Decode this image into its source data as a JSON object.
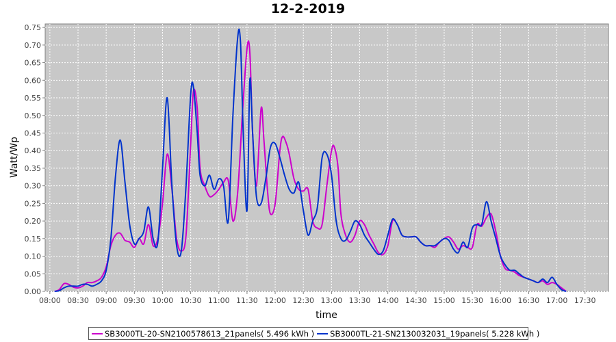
{
  "chart_data": {
    "type": "line",
    "title": "12-2-2019",
    "xlabel": "time",
    "ylabel": "Watt/Wp",
    "x_ticks": [
      "08:00",
      "08:30",
      "09:00",
      "09:30",
      "10:00",
      "10:30",
      "11:00",
      "11:30",
      "12:00",
      "12:30",
      "13:00",
      "13:30",
      "14:00",
      "14:30",
      "15:00",
      "15:30",
      "16:00",
      "16:30",
      "17:00",
      "17:30"
    ],
    "y_ticks": [
      "0.00",
      "0.05",
      "0.10",
      "0.15",
      "0.20",
      "0.25",
      "0.30",
      "0.35",
      "0.40",
      "0.45",
      "0.50",
      "0.55",
      "0.60",
      "0.65",
      "0.70",
      "0.75"
    ],
    "xlim": [
      "07:55",
      "17:55"
    ],
    "ylim": [
      0,
      0.76
    ],
    "grid": true,
    "legend_position": "bottom",
    "series": [
      {
        "name": "SB3000TL-20-SN2100578613_21panels( 5.496 kWh )",
        "color": "#cc00cc",
        "points": [
          [
            "08:05",
            0.0
          ],
          [
            "08:10",
            0.005
          ],
          [
            "08:15",
            0.022
          ],
          [
            "08:20",
            0.02
          ],
          [
            "08:25",
            0.012
          ],
          [
            "08:30",
            0.01
          ],
          [
            "08:35",
            0.015
          ],
          [
            "08:40",
            0.025
          ],
          [
            "08:45",
            0.025
          ],
          [
            "08:50",
            0.03
          ],
          [
            "08:55",
            0.04
          ],
          [
            "09:00",
            0.07
          ],
          [
            "09:05",
            0.13
          ],
          [
            "09:10",
            0.16
          ],
          [
            "09:15",
            0.165
          ],
          [
            "09:20",
            0.145
          ],
          [
            "09:25",
            0.14
          ],
          [
            "09:30",
            0.125
          ],
          [
            "09:35",
            0.15
          ],
          [
            "09:40",
            0.135
          ],
          [
            "09:45",
            0.19
          ],
          [
            "09:50",
            0.13
          ],
          [
            "09:55",
            0.15
          ],
          [
            "10:00",
            0.25
          ],
          [
            "10:05",
            0.39
          ],
          [
            "10:10",
            0.29
          ],
          [
            "10:15",
            0.15
          ],
          [
            "10:20",
            0.115
          ],
          [
            "10:25",
            0.16
          ],
          [
            "10:30",
            0.42
          ],
          [
            "10:33",
            0.57
          ],
          [
            "10:37",
            0.52
          ],
          [
            "10:40",
            0.35
          ],
          [
            "10:45",
            0.3
          ],
          [
            "10:50",
            0.27
          ],
          [
            "10:55",
            0.275
          ],
          [
            "11:00",
            0.29
          ],
          [
            "11:05",
            0.31
          ],
          [
            "11:10",
            0.315
          ],
          [
            "11:15",
            0.2
          ],
          [
            "11:20",
            0.28
          ],
          [
            "11:25",
            0.5
          ],
          [
            "11:30",
            0.69
          ],
          [
            "11:33",
            0.68
          ],
          [
            "11:36",
            0.45
          ],
          [
            "11:40",
            0.3
          ],
          [
            "11:45",
            0.52
          ],
          [
            "11:48",
            0.43
          ],
          [
            "11:52",
            0.28
          ],
          [
            "11:55",
            0.22
          ],
          [
            "12:00",
            0.25
          ],
          [
            "12:05",
            0.4
          ],
          [
            "12:08",
            0.44
          ],
          [
            "12:12",
            0.42
          ],
          [
            "12:15",
            0.39
          ],
          [
            "12:20",
            0.32
          ],
          [
            "12:25",
            0.29
          ],
          [
            "12:30",
            0.285
          ],
          [
            "12:35",
            0.29
          ],
          [
            "12:40",
            0.2
          ],
          [
            "12:45",
            0.18
          ],
          [
            "12:50",
            0.19
          ],
          [
            "12:55",
            0.3
          ],
          [
            "13:00",
            0.4
          ],
          [
            "13:03",
            0.41
          ],
          [
            "13:07",
            0.35
          ],
          [
            "13:10",
            0.22
          ],
          [
            "13:15",
            0.16
          ],
          [
            "13:20",
            0.14
          ],
          [
            "13:25",
            0.16
          ],
          [
            "13:30",
            0.2
          ],
          [
            "13:35",
            0.19
          ],
          [
            "13:40",
            0.16
          ],
          [
            "13:45",
            0.135
          ],
          [
            "13:50",
            0.11
          ],
          [
            "13:55",
            0.105
          ],
          [
            "14:00",
            0.13
          ],
          [
            "14:05",
            0.2
          ],
          [
            "14:10",
            0.19
          ],
          [
            "14:15",
            0.16
          ],
          [
            "14:20",
            0.155
          ],
          [
            "14:25",
            0.155
          ],
          [
            "14:30",
            0.155
          ],
          [
            "14:35",
            0.14
          ],
          [
            "14:40",
            0.13
          ],
          [
            "14:45",
            0.13
          ],
          [
            "14:50",
            0.125
          ],
          [
            "14:55",
            0.14
          ],
          [
            "15:00",
            0.15
          ],
          [
            "15:05",
            0.155
          ],
          [
            "15:10",
            0.14
          ],
          [
            "15:15",
            0.12
          ],
          [
            "15:20",
            0.13
          ],
          [
            "15:25",
            0.125
          ],
          [
            "15:30",
            0.125
          ],
          [
            "15:35",
            0.19
          ],
          [
            "15:40",
            0.185
          ],
          [
            "15:45",
            0.21
          ],
          [
            "15:50",
            0.22
          ],
          [
            "15:55",
            0.17
          ],
          [
            "16:00",
            0.1
          ],
          [
            "16:05",
            0.065
          ],
          [
            "16:10",
            0.06
          ],
          [
            "16:15",
            0.055
          ],
          [
            "16:20",
            0.045
          ],
          [
            "16:25",
            0.04
          ],
          [
            "16:30",
            0.035
          ],
          [
            "16:35",
            0.03
          ],
          [
            "16:40",
            0.025
          ],
          [
            "16:45",
            0.03
          ],
          [
            "16:50",
            0.02
          ],
          [
            "16:55",
            0.025
          ],
          [
            "17:00",
            0.02
          ],
          [
            "17:05",
            0.01
          ],
          [
            "17:10",
            0.0
          ]
        ]
      },
      {
        "name": "SB3000TL-21-SN2130032031_19panels( 5.228 kWh )",
        "color": "#0033cc",
        "points": [
          [
            "08:05",
            0.0
          ],
          [
            "08:10",
            0.002
          ],
          [
            "08:15",
            0.01
          ],
          [
            "08:20",
            0.015
          ],
          [
            "08:25",
            0.015
          ],
          [
            "08:30",
            0.015
          ],
          [
            "08:35",
            0.02
          ],
          [
            "08:40",
            0.02
          ],
          [
            "08:45",
            0.015
          ],
          [
            "08:50",
            0.02
          ],
          [
            "08:55",
            0.03
          ],
          [
            "09:00",
            0.06
          ],
          [
            "09:05",
            0.15
          ],
          [
            "09:10",
            0.33
          ],
          [
            "09:15",
            0.43
          ],
          [
            "09:20",
            0.31
          ],
          [
            "09:25",
            0.19
          ],
          [
            "09:30",
            0.135
          ],
          [
            "09:35",
            0.15
          ],
          [
            "09:40",
            0.17
          ],
          [
            "09:45",
            0.24
          ],
          [
            "09:50",
            0.15
          ],
          [
            "09:55",
            0.14
          ],
          [
            "10:00",
            0.35
          ],
          [
            "10:05",
            0.55
          ],
          [
            "10:10",
            0.3
          ],
          [
            "10:15",
            0.13
          ],
          [
            "10:20",
            0.115
          ],
          [
            "10:25",
            0.3
          ],
          [
            "10:30",
            0.56
          ],
          [
            "10:33",
            0.58
          ],
          [
            "10:37",
            0.45
          ],
          [
            "10:40",
            0.33
          ],
          [
            "10:45",
            0.3
          ],
          [
            "10:50",
            0.33
          ],
          [
            "10:55",
            0.29
          ],
          [
            "11:00",
            0.32
          ],
          [
            "11:05",
            0.3
          ],
          [
            "11:10",
            0.2
          ],
          [
            "11:15",
            0.5
          ],
          [
            "11:20",
            0.72
          ],
          [
            "11:23",
            0.71
          ],
          [
            "11:26",
            0.45
          ],
          [
            "11:30",
            0.23
          ],
          [
            "11:33",
            0.6
          ],
          [
            "11:36",
            0.45
          ],
          [
            "11:40",
            0.27
          ],
          [
            "11:45",
            0.25
          ],
          [
            "11:50",
            0.32
          ],
          [
            "11:55",
            0.41
          ],
          [
            "12:00",
            0.42
          ],
          [
            "12:05",
            0.38
          ],
          [
            "12:10",
            0.33
          ],
          [
            "12:15",
            0.29
          ],
          [
            "12:20",
            0.28
          ],
          [
            "12:25",
            0.31
          ],
          [
            "12:30",
            0.23
          ],
          [
            "12:35",
            0.16
          ],
          [
            "12:40",
            0.2
          ],
          [
            "12:45",
            0.24
          ],
          [
            "12:50",
            0.38
          ],
          [
            "12:55",
            0.39
          ],
          [
            "13:00",
            0.33
          ],
          [
            "13:05",
            0.2
          ],
          [
            "13:10",
            0.15
          ],
          [
            "13:15",
            0.145
          ],
          [
            "13:20",
            0.17
          ],
          [
            "13:25",
            0.2
          ],
          [
            "13:30",
            0.19
          ],
          [
            "13:35",
            0.16
          ],
          [
            "13:40",
            0.14
          ],
          [
            "13:45",
            0.12
          ],
          [
            "13:50",
            0.105
          ],
          [
            "13:55",
            0.115
          ],
          [
            "14:00",
            0.16
          ],
          [
            "14:05",
            0.205
          ],
          [
            "14:10",
            0.19
          ],
          [
            "14:15",
            0.16
          ],
          [
            "14:20",
            0.155
          ],
          [
            "14:25",
            0.155
          ],
          [
            "14:30",
            0.155
          ],
          [
            "14:35",
            0.14
          ],
          [
            "14:40",
            0.13
          ],
          [
            "14:45",
            0.13
          ],
          [
            "14:50",
            0.13
          ],
          [
            "14:55",
            0.14
          ],
          [
            "15:00",
            0.15
          ],
          [
            "15:05",
            0.145
          ],
          [
            "15:10",
            0.12
          ],
          [
            "15:15",
            0.11
          ],
          [
            "15:20",
            0.14
          ],
          [
            "15:25",
            0.125
          ],
          [
            "15:30",
            0.18
          ],
          [
            "15:35",
            0.19
          ],
          [
            "15:40",
            0.19
          ],
          [
            "15:45",
            0.255
          ],
          [
            "15:50",
            0.2
          ],
          [
            "15:55",
            0.15
          ],
          [
            "16:00",
            0.1
          ],
          [
            "16:05",
            0.075
          ],
          [
            "16:10",
            0.06
          ],
          [
            "16:15",
            0.06
          ],
          [
            "16:20",
            0.05
          ],
          [
            "16:25",
            0.04
          ],
          [
            "16:30",
            0.035
          ],
          [
            "16:35",
            0.03
          ],
          [
            "16:40",
            0.025
          ],
          [
            "16:45",
            0.035
          ],
          [
            "16:50",
            0.025
          ],
          [
            "16:55",
            0.04
          ],
          [
            "17:00",
            0.02
          ],
          [
            "17:05",
            0.005
          ],
          [
            "17:10",
            0.0
          ]
        ]
      }
    ]
  }
}
